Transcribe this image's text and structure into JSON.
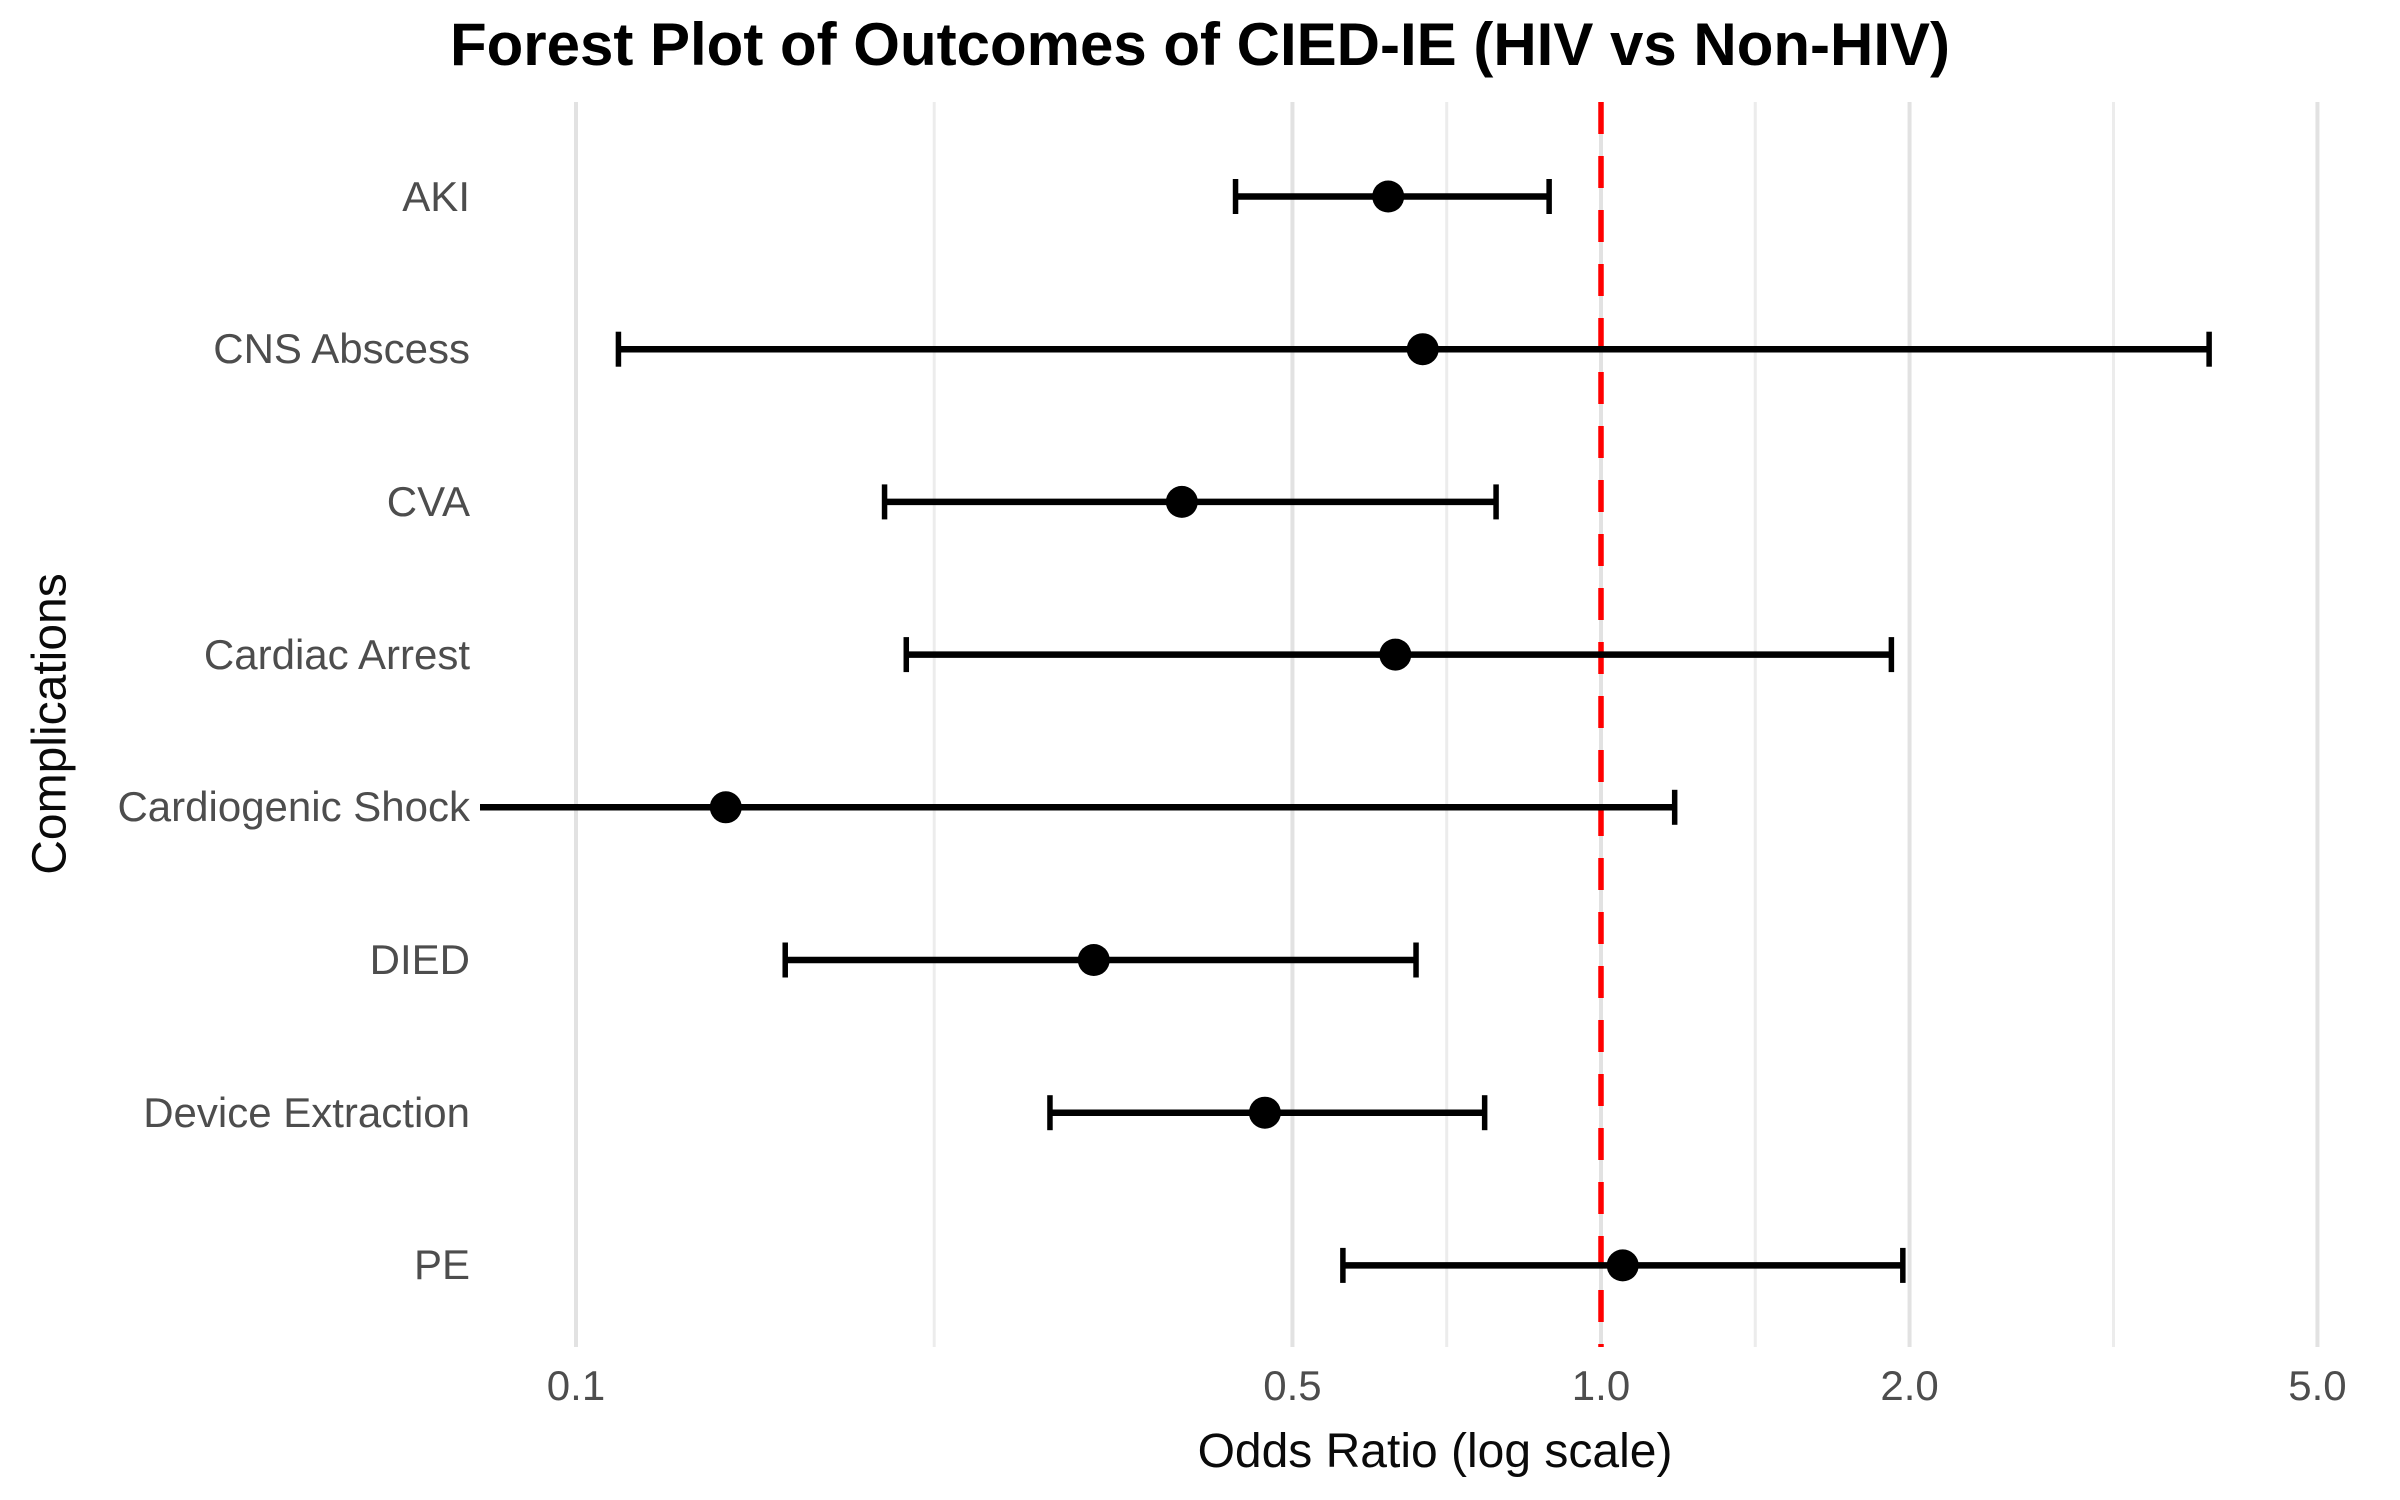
{
  "title": "Forest Plot of Outcomes of CIED-IE (HIV vs Non-HIV)",
  "colors": {
    "background": "#FFFFFF",
    "title": "#000000",
    "axis_title": "#0A0A0A",
    "tick_label": "#4D4D4D",
    "grid_major": "#E2E2E2",
    "grid_minor": "#ECECEC",
    "ci_line": "#000000",
    "marker": "#000000",
    "reference_line": "#FF0000"
  },
  "chart_data": {
    "type": "scatter",
    "subtype": "forest-plot",
    "title": "Forest Plot of Outcomes of CIED-IE (HIV vs Non-HIV)",
    "xlabel": "Odds Ratio (log scale)",
    "ylabel": "Complications",
    "x_scale": "log10",
    "x_range": [
      0.081,
      5.89
    ],
    "grid": "vertical-only",
    "legend": "none",
    "x_ticks": [
      {
        "value": 0.1,
        "label": "0.1"
      },
      {
        "value": 0.5,
        "label": "0.5"
      },
      {
        "value": 1.0,
        "label": "1.0"
      },
      {
        "value": 2.0,
        "label": "2.0"
      },
      {
        "value": 5.0,
        "label": "5.0"
      }
    ],
    "x_minor_ticks": [
      0.2236,
      0.7071,
      1.4142,
      3.1623
    ],
    "reference_line": {
      "x": 1.0,
      "style": "dashed",
      "color": "#FF0000"
    },
    "categories": [
      "AKI",
      "CNS Abscess",
      "CVA",
      "Cardiac Arrest",
      "Cardiogenic Shock",
      "DIED",
      "Device Extraction",
      "PE"
    ],
    "rows": [
      {
        "label": "AKI",
        "or": 0.62,
        "ci_low": 0.44,
        "ci_high": 0.89
      },
      {
        "label": "CNS Abscess",
        "or": 0.67,
        "ci_low": 0.11,
        "ci_high": 3.92
      },
      {
        "label": "CVA",
        "or": 0.39,
        "ci_low": 0.2,
        "ci_high": 0.79
      },
      {
        "label": "Cardiac Arrest",
        "or": 0.63,
        "ci_low": 0.21,
        "ci_high": 1.92
      },
      {
        "label": "Cardiogenic Shock",
        "or": 0.14,
        "ci_low": 0.08,
        "ci_high": 1.18
      },
      {
        "label": "DIED",
        "or": 0.32,
        "ci_low": 0.16,
        "ci_high": 0.66
      },
      {
        "label": "Device Extraction",
        "or": 0.47,
        "ci_low": 0.29,
        "ci_high": 0.77
      },
      {
        "label": "PE",
        "or": 1.05,
        "ci_low": 0.56,
        "ci_high": 1.97
      }
    ]
  }
}
